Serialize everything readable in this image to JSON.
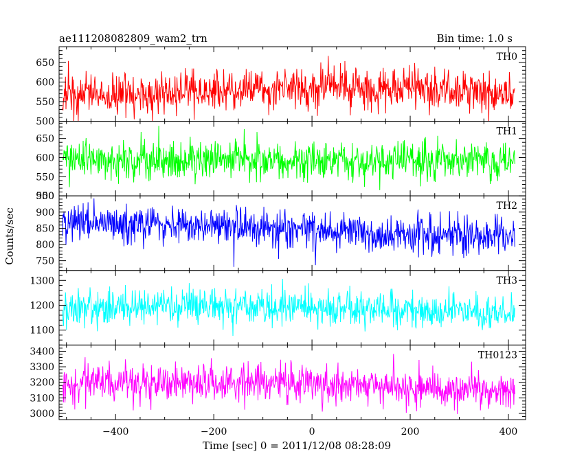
{
  "header": {
    "left": "ae111208082809_wam2_trn",
    "right": "Bin time: 1.0 s"
  },
  "chart_data": {
    "type": "line",
    "xlabel": "Time [sec] 0 = 2011/12/08 08:28:09",
    "ylabel": "Counts/sec",
    "xlim": [
      -515,
      435
    ],
    "xticks": [
      "−400",
      "−200",
      "0",
      "200",
      "400"
    ],
    "xtick_values": [
      -400,
      -200,
      0,
      200,
      400
    ],
    "x_range": [
      -508,
      413
    ],
    "bin": 1.0,
    "panels": [
      {
        "name": "TH0",
        "color": "#ff0000",
        "ylim": [
          500,
          690
        ],
        "yticks": [
          500,
          550,
          600,
          650
        ],
        "ytick_labels": [
          "500",
          "550",
          "600",
          "650"
        ],
        "trend": [
          [
            -508,
            568
          ],
          [
            -200,
            575
          ],
          [
            50,
            588
          ],
          [
            250,
            580
          ],
          [
            413,
            570
          ]
        ],
        "noise_sd": 26
      },
      {
        "name": "TH1",
        "color": "#00ff00",
        "ylim": [
          500,
          695
        ],
        "yticks": [
          500,
          550,
          600,
          650
        ],
        "ytick_labels": [
          "500",
          "550",
          "600",
          "650"
        ],
        "trend": [
          [
            -508,
            596
          ],
          [
            0,
            594
          ],
          [
            413,
            590
          ]
        ],
        "noise_sd": 24
      },
      {
        "name": "TH2",
        "color": "#0000ff",
        "ylim": [
          720,
          950
        ],
        "yticks": [
          750,
          800,
          850,
          900,
          950
        ],
        "ytick_labels": [
          "750",
          "800",
          "850",
          "900",
          "950"
        ],
        "trend": [
          [
            -508,
            868
          ],
          [
            -300,
            862
          ],
          [
            0,
            845
          ],
          [
            200,
            830
          ],
          [
            413,
            822
          ]
        ],
        "noise_sd": 30
      },
      {
        "name": "TH3",
        "color": "#00ffff",
        "ylim": [
          1040,
          1340
        ],
        "yticks": [
          1100,
          1200,
          1300
        ],
        "ytick_labels": [
          "1100",
          "1200",
          "1300"
        ],
        "trend": [
          [
            -508,
            1185
          ],
          [
            -200,
            1195
          ],
          [
            50,
            1185
          ],
          [
            413,
            1175
          ]
        ],
        "noise_sd": 38
      },
      {
        "name": "TH0123",
        "color": "#ff00ff",
        "ylim": [
          2960,
          3440
        ],
        "yticks": [
          3000,
          3100,
          3200,
          3300,
          3400
        ],
        "ytick_labels": [
          "3000",
          "3100",
          "3200",
          "3300",
          "3400"
        ],
        "trend": [
          [
            -508,
            3200
          ],
          [
            0,
            3205
          ],
          [
            200,
            3165
          ],
          [
            413,
            3140
          ]
        ],
        "noise_sd": 62
      }
    ]
  }
}
